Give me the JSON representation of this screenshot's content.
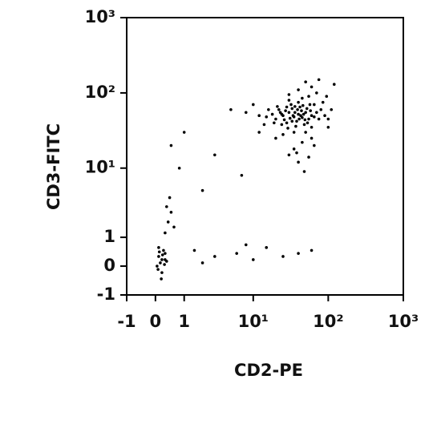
{
  "chart_data": {
    "type": "scatter",
    "scale": "biexponential",
    "color": "#000000",
    "x_label": "CD2-PE",
    "y_label": "CD3-FITC",
    "xlim": [
      -1,
      1000
    ],
    "ylim": [
      -1,
      1000
    ],
    "xticks": [
      -1,
      0,
      1,
      {
        "value": 10,
        "label": "10¹"
      },
      {
        "value": 100,
        "label": "10²"
      },
      {
        "value": 1000,
        "label": "10³"
      }
    ],
    "yticks": [
      -1,
      0,
      1,
      {
        "value": 10,
        "label": "10¹"
      },
      {
        "value": 100,
        "label": "10²"
      },
      {
        "value": 1000,
        "label": "10³"
      }
    ],
    "x": [
      20,
      25,
      30,
      35,
      40,
      45,
      22,
      28,
      33,
      38,
      50,
      55,
      18,
      24,
      32,
      42,
      48,
      60,
      15,
      27,
      36,
      44,
      52,
      26,
      31,
      37,
      46,
      58,
      21,
      29,
      34,
      41,
      47,
      53,
      65,
      19,
      23,
      39,
      57,
      70,
      16,
      30,
      45,
      60,
      75,
      12,
      14,
      35,
      50,
      80,
      25,
      40,
      55,
      65,
      28,
      33,
      43,
      49,
      36,
      24,
      90,
      100,
      110,
      85,
      70,
      60,
      40,
      30,
      10,
      8,
      12,
      20,
      45,
      35,
      60,
      95,
      120,
      75,
      50,
      100,
      40,
      48,
      55,
      30,
      65,
      38,
      0.1,
      0.2,
      0.3,
      0.15,
      0.25,
      0.05,
      0.2,
      0.3,
      0.1,
      0.18,
      0.22,
      0.28,
      0.12,
      0.35,
      0.08,
      0.3,
      0.4,
      0.5,
      0.35,
      0.6,
      0.45,
      1.5,
      3,
      6,
      10,
      15,
      25,
      40,
      60,
      2,
      8,
      0.5,
      1,
      3,
      5,
      0.8,
      7,
      2
    ],
    "values": [
      45,
      50,
      55,
      48,
      52,
      47,
      60,
      40,
      62,
      42,
      55,
      45,
      52,
      38,
      70,
      65,
      38,
      50,
      48,
      58,
      55,
      58,
      62,
      44,
      46,
      36,
      68,
      58,
      66,
      34,
      50,
      45,
      52,
      40,
      48,
      40,
      55,
      60,
      70,
      55,
      60,
      80,
      85,
      35,
      45,
      50,
      38,
      30,
      30,
      60,
      28,
      75,
      90,
      70,
      65,
      42,
      50,
      44,
      66,
      52,
      50,
      45,
      60,
      75,
      100,
      120,
      110,
      95,
      70,
      55,
      30,
      25,
      22,
      18,
      25,
      90,
      130,
      150,
      140,
      35,
      12,
      9,
      14,
      15,
      20,
      16,
      0.3,
      0.2,
      0.4,
      0.1,
      0.5,
      0,
      -0.2,
      0.2,
      0.6,
      -0.4,
      0.35,
      0.05,
      0.45,
      0.15,
      -0.1,
      1.2,
      1.8,
      2.5,
      3,
      1.5,
      4,
      0.5,
      0.3,
      0.4,
      0.2,
      0.6,
      0.3,
      0.4,
      0.5,
      0.1,
      0.7,
      20,
      30,
      15,
      60,
      10,
      8,
      5
    ]
  }
}
